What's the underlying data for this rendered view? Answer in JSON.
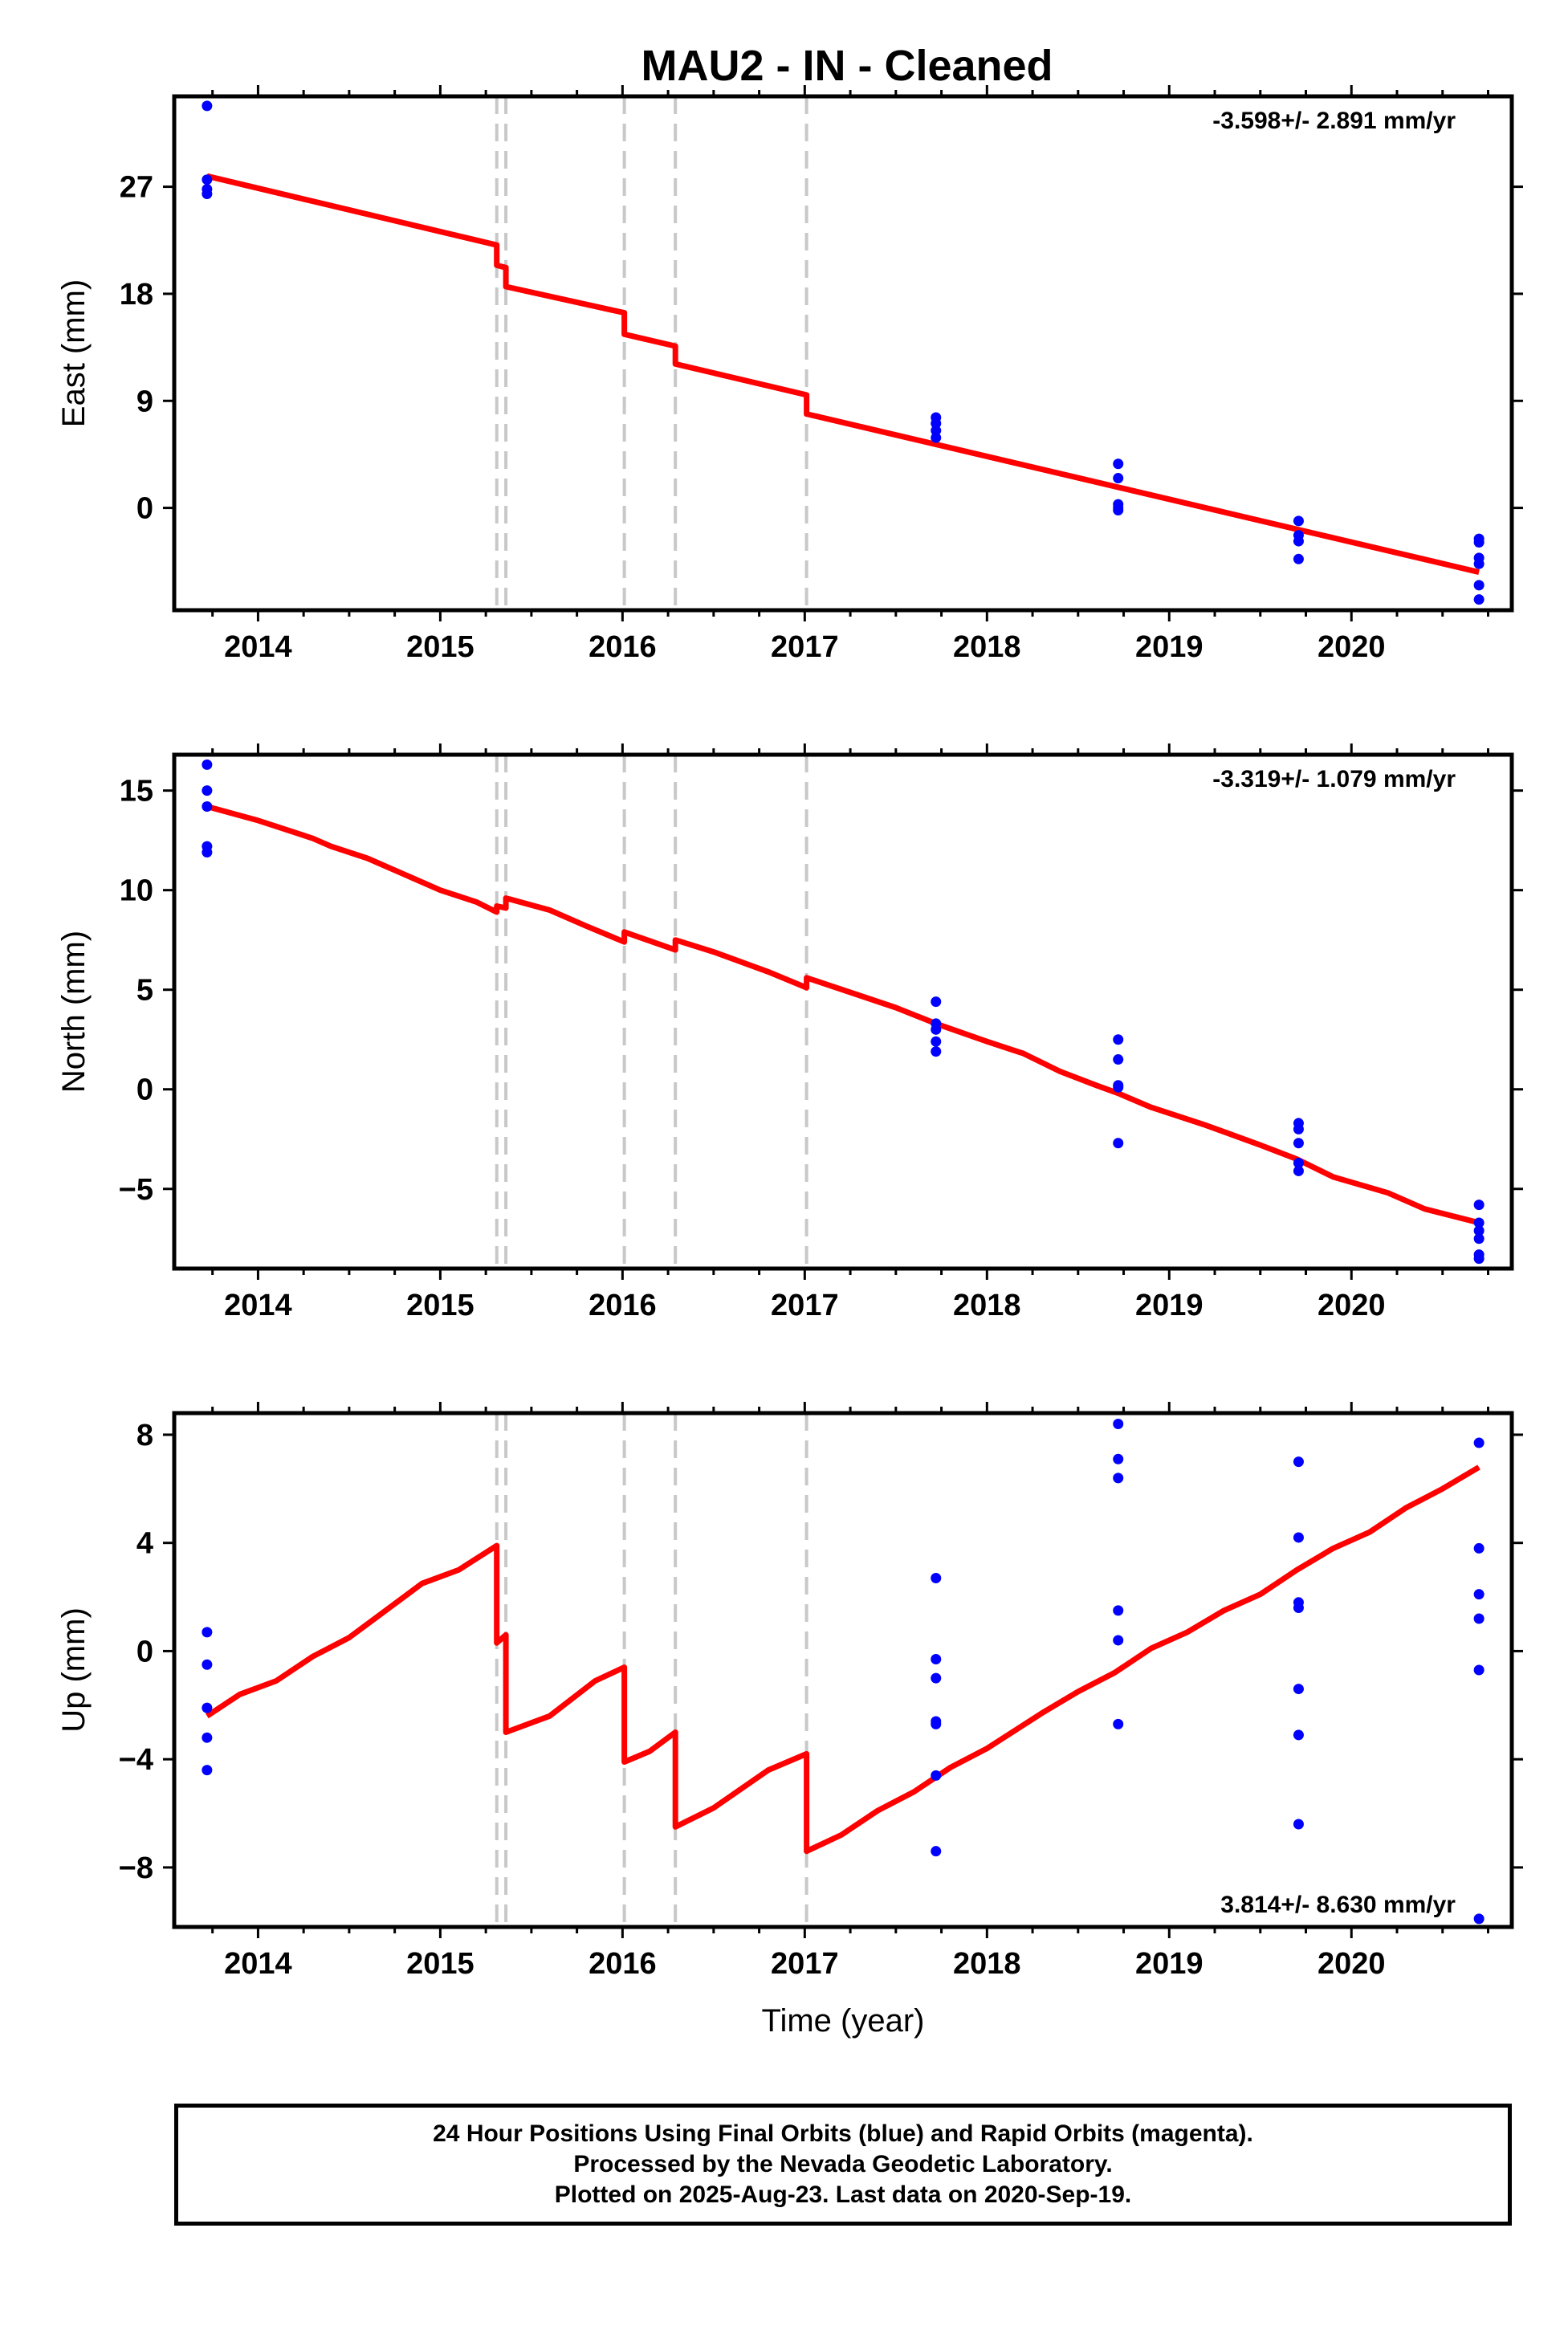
{
  "title": "MAU2  - IN - Cleaned",
  "colors": {
    "final_orbits": "#0000ff",
    "model": "#ff0000",
    "event_lines": "#c8c8c8",
    "frame": "#000000"
  },
  "footer": {
    "line1": "24 Hour Positions Using Final Orbits (blue) and Rapid Orbits (magenta).",
    "line2": "Processed by the Nevada Geodetic Laboratory.",
    "line3": "Plotted on 2025-Aug-23. Last data on 2020-Sep-19."
  },
  "chart_data": [
    {
      "type": "scatter",
      "component": "east",
      "ylabel": "East (mm)",
      "xlim": [
        2013.54,
        2020.88
      ],
      "ylim": [
        -8.6,
        34.6
      ],
      "xticks": [
        2014,
        2015,
        2016,
        2017,
        2018,
        2019,
        2020
      ],
      "yticks": [
        0,
        9,
        18,
        27
      ],
      "grid": false,
      "rate_label": "-3.598+/- 2.891 mm/yr",
      "rate_position": "top-right",
      "event_lines": [
        2015.31,
        2015.36,
        2016.01,
        2016.29,
        2017.01
      ],
      "points": [
        [
          2013.72,
          33.8
        ],
        [
          2013.72,
          27.6
        ],
        [
          2013.72,
          26.8
        ],
        [
          2013.72,
          26.4
        ],
        [
          2017.72,
          7.6
        ],
        [
          2017.72,
          7.1
        ],
        [
          2017.72,
          6.5
        ],
        [
          2017.72,
          5.9
        ],
        [
          2018.72,
          3.7
        ],
        [
          2018.72,
          2.5
        ],
        [
          2018.72,
          0.3
        ],
        [
          2018.72,
          0.0
        ],
        [
          2018.72,
          -0.2
        ],
        [
          2019.71,
          -1.1
        ],
        [
          2019.71,
          -2.3
        ],
        [
          2019.71,
          -2.8
        ],
        [
          2019.71,
          -4.3
        ],
        [
          2020.7,
          -2.6
        ],
        [
          2020.7,
          -2.9
        ],
        [
          2020.7,
          -4.2
        ],
        [
          2020.7,
          -4.7
        ],
        [
          2020.7,
          -6.5
        ],
        [
          2020.7,
          -7.7
        ]
      ],
      "model": [
        [
          2013.72,
          27.9
        ],
        [
          2015.31,
          22.1
        ],
        [
          2015.31,
          20.4
        ],
        [
          2015.36,
          20.2
        ],
        [
          2015.36,
          18.6
        ],
        [
          2016.01,
          16.4
        ],
        [
          2016.01,
          14.6
        ],
        [
          2016.29,
          13.6
        ],
        [
          2016.29,
          12.1
        ],
        [
          2017.01,
          9.5
        ],
        [
          2017.01,
          7.9
        ],
        [
          2020.7,
          -5.4
        ]
      ]
    },
    {
      "type": "scatter",
      "component": "north",
      "ylabel": "North (mm)",
      "xlim": [
        2013.54,
        2020.88
      ],
      "ylim": [
        -9.0,
        16.8
      ],
      "xticks": [
        2014,
        2015,
        2016,
        2017,
        2018,
        2019,
        2020
      ],
      "yticks": [
        -5,
        0,
        5,
        10,
        15
      ],
      "grid": false,
      "rate_label": "-3.319+/- 1.079 mm/yr",
      "rate_position": "top-right",
      "event_lines": [
        2015.31,
        2015.36,
        2016.01,
        2016.29,
        2017.01
      ],
      "points": [
        [
          2013.72,
          16.3
        ],
        [
          2013.72,
          15.0
        ],
        [
          2013.72,
          14.2
        ],
        [
          2013.72,
          12.2
        ],
        [
          2013.72,
          11.9
        ],
        [
          2017.72,
          4.4
        ],
        [
          2017.72,
          3.3
        ],
        [
          2017.72,
          3.0
        ],
        [
          2017.72,
          2.4
        ],
        [
          2017.72,
          1.9
        ],
        [
          2018.72,
          2.5
        ],
        [
          2018.72,
          1.5
        ],
        [
          2018.72,
          0.2
        ],
        [
          2018.72,
          0.1
        ],
        [
          2018.72,
          -2.7
        ],
        [
          2019.71,
          -1.7
        ],
        [
          2019.71,
          -2.0
        ],
        [
          2019.71,
          -2.7
        ],
        [
          2019.71,
          -3.7
        ],
        [
          2019.71,
          -4.1
        ],
        [
          2020.7,
          -5.8
        ],
        [
          2020.7,
          -6.7
        ],
        [
          2020.7,
          -7.1
        ],
        [
          2020.7,
          -7.5
        ],
        [
          2020.7,
          -8.3
        ],
        [
          2020.7,
          -8.5
        ]
      ],
      "model": [
        [
          2013.72,
          14.2
        ],
        [
          2014.0,
          13.5
        ],
        [
          2014.1,
          13.2
        ],
        [
          2014.3,
          12.6
        ],
        [
          2014.4,
          12.2
        ],
        [
          2014.6,
          11.6
        ],
        [
          2014.8,
          10.8
        ],
        [
          2015.0,
          10.0
        ],
        [
          2015.2,
          9.4
        ],
        [
          2015.31,
          8.9
        ],
        [
          2015.31,
          9.2
        ],
        [
          2015.36,
          9.1
        ],
        [
          2015.36,
          9.6
        ],
        [
          2015.6,
          9.0
        ],
        [
          2015.8,
          8.2
        ],
        [
          2016.01,
          7.4
        ],
        [
          2016.01,
          7.9
        ],
        [
          2016.29,
          7.0
        ],
        [
          2016.29,
          7.5
        ],
        [
          2016.5,
          6.9
        ],
        [
          2016.8,
          5.9
        ],
        [
          2017.01,
          5.1
        ],
        [
          2017.01,
          5.6
        ],
        [
          2017.5,
          4.1
        ],
        [
          2017.72,
          3.3
        ],
        [
          2018.0,
          2.4
        ],
        [
          2018.2,
          1.8
        ],
        [
          2018.4,
          0.9
        ],
        [
          2018.6,
          0.2
        ],
        [
          2018.72,
          -0.2
        ],
        [
          2018.9,
          -0.9
        ],
        [
          2019.2,
          -1.8
        ],
        [
          2019.5,
          -2.8
        ],
        [
          2019.7,
          -3.5
        ],
        [
          2019.9,
          -4.4
        ],
        [
          2020.2,
          -5.2
        ],
        [
          2020.4,
          -6.0
        ],
        [
          2020.7,
          -6.7
        ]
      ]
    },
    {
      "type": "scatter",
      "component": "up",
      "ylabel": "Up (mm)",
      "xlabel": "Time (year)",
      "xlim": [
        2013.54,
        2020.88
      ],
      "ylim": [
        -10.2,
        8.8
      ],
      "xticks": [
        2014,
        2015,
        2016,
        2017,
        2018,
        2019,
        2020
      ],
      "yticks": [
        -8,
        -4,
        0,
        4,
        8
      ],
      "grid": false,
      "rate_label": "3.814+/- 8.630 mm/yr",
      "rate_position": "bottom-right",
      "event_lines": [
        2015.31,
        2015.36,
        2016.01,
        2016.29,
        2017.01
      ],
      "points": [
        [
          2013.72,
          0.7
        ],
        [
          2013.72,
          -0.5
        ],
        [
          2013.72,
          -2.1
        ],
        [
          2013.72,
          -3.2
        ],
        [
          2013.72,
          -4.4
        ],
        [
          2017.72,
          2.7
        ],
        [
          2017.72,
          -0.3
        ],
        [
          2017.72,
          -1.0
        ],
        [
          2017.72,
          -2.6
        ],
        [
          2017.72,
          -2.7
        ],
        [
          2017.72,
          -4.6
        ],
        [
          2017.72,
          -7.4
        ],
        [
          2018.72,
          8.4
        ],
        [
          2018.72,
          7.1
        ],
        [
          2018.72,
          6.4
        ],
        [
          2018.72,
          1.5
        ],
        [
          2018.72,
          0.4
        ],
        [
          2018.72,
          -2.7
        ],
        [
          2019.71,
          7.0
        ],
        [
          2019.71,
          4.2
        ],
        [
          2019.71,
          1.8
        ],
        [
          2019.71,
          1.6
        ],
        [
          2019.71,
          -1.4
        ],
        [
          2019.71,
          -3.1
        ],
        [
          2019.71,
          -6.4
        ],
        [
          2020.7,
          7.7
        ],
        [
          2020.7,
          3.8
        ],
        [
          2020.7,
          2.1
        ],
        [
          2020.7,
          1.2
        ],
        [
          2020.7,
          -0.7
        ],
        [
          2020.7,
          -9.9
        ]
      ],
      "model": [
        [
          2013.72,
          -2.4
        ],
        [
          2013.9,
          -1.6
        ],
        [
          2014.1,
          -1.1
        ],
        [
          2014.3,
          -0.2
        ],
        [
          2014.5,
          0.5
        ],
        [
          2014.7,
          1.5
        ],
        [
          2014.9,
          2.5
        ],
        [
          2015.1,
          3.0
        ],
        [
          2015.31,
          3.9
        ],
        [
          2015.31,
          0.3
        ],
        [
          2015.36,
          0.6
        ],
        [
          2015.36,
          -3.0
        ],
        [
          2015.6,
          -2.4
        ],
        [
          2015.85,
          -1.1
        ],
        [
          2016.01,
          -0.6
        ],
        [
          2016.01,
          -4.1
        ],
        [
          2016.15,
          -3.7
        ],
        [
          2016.29,
          -3.0
        ],
        [
          2016.29,
          -6.5
        ],
        [
          2016.5,
          -5.8
        ],
        [
          2016.8,
          -4.4
        ],
        [
          2017.01,
          -3.8
        ],
        [
          2017.01,
          -7.4
        ],
        [
          2017.2,
          -6.8
        ],
        [
          2017.4,
          -5.9
        ],
        [
          2017.6,
          -5.2
        ],
        [
          2017.8,
          -4.3
        ],
        [
          2018.0,
          -3.6
        ],
        [
          2018.3,
          -2.3
        ],
        [
          2018.5,
          -1.5
        ],
        [
          2018.7,
          -0.8
        ],
        [
          2018.9,
          0.1
        ],
        [
          2019.1,
          0.7
        ],
        [
          2019.3,
          1.5
        ],
        [
          2019.5,
          2.1
        ],
        [
          2019.7,
          3.0
        ],
        [
          2019.9,
          3.8
        ],
        [
          2020.1,
          4.4
        ],
        [
          2020.3,
          5.3
        ],
        [
          2020.5,
          6.0
        ],
        [
          2020.7,
          6.8
        ]
      ]
    }
  ]
}
